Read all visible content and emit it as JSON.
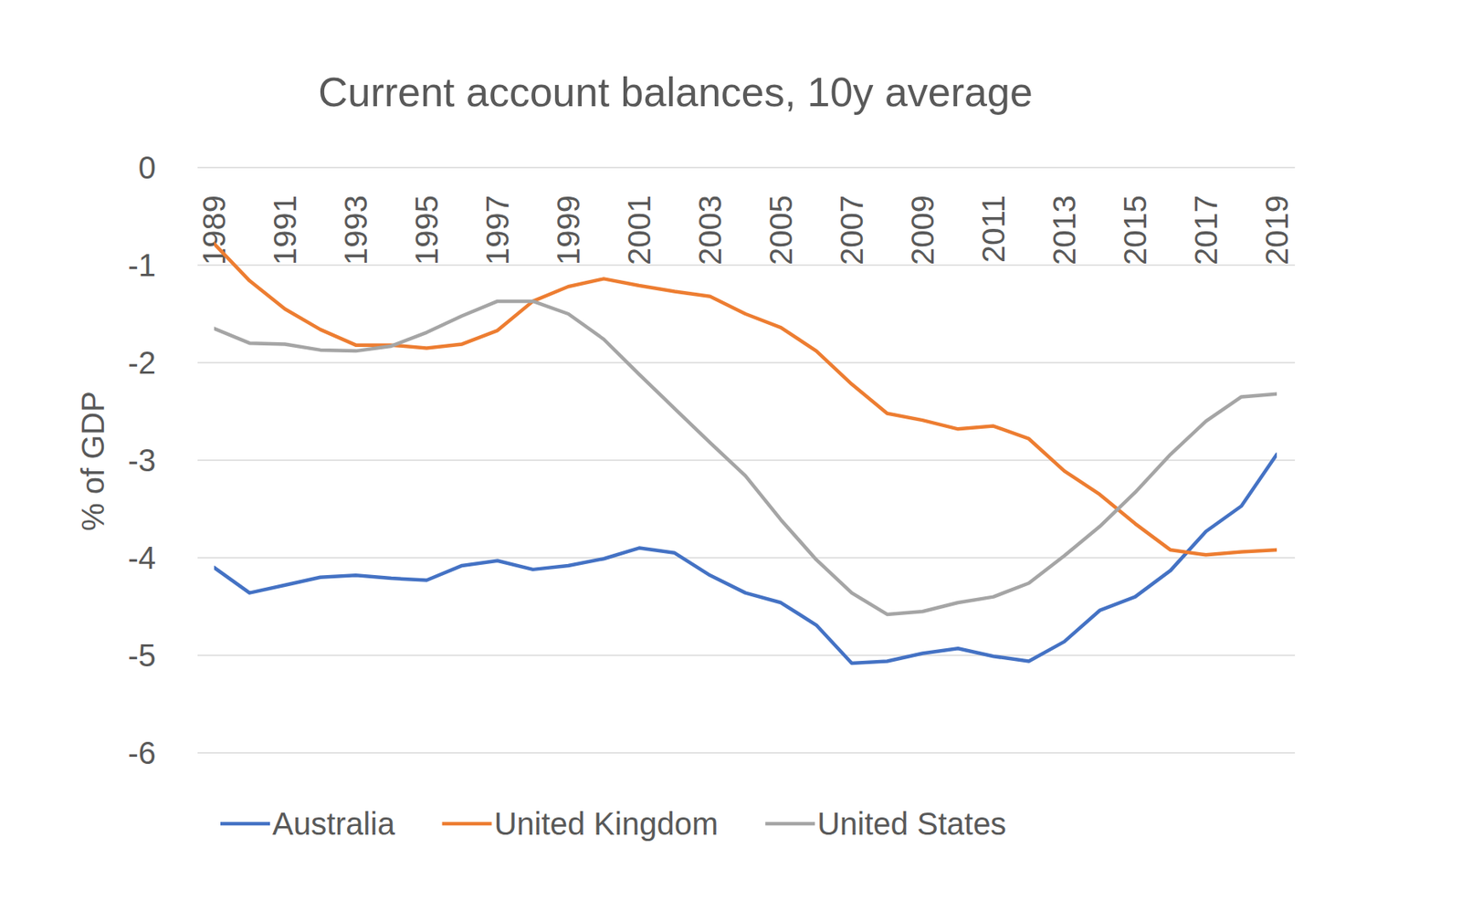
{
  "chart_data": {
    "type": "line",
    "title": "Current account balances, 10y average",
    "y_label": "% of GDP",
    "x": [
      1989,
      1990,
      1991,
      1992,
      1993,
      1994,
      1995,
      1996,
      1997,
      1998,
      1999,
      2000,
      2001,
      2002,
      2003,
      2004,
      2005,
      2006,
      2007,
      2008,
      2009,
      2010,
      2011,
      2012,
      2013,
      2014,
      2015,
      2016,
      2017,
      2018,
      2019
    ],
    "xlim": [
      1989,
      2019
    ],
    "xticks": [
      1989,
      1991,
      1993,
      1995,
      1997,
      1999,
      2001,
      2003,
      2005,
      2007,
      2009,
      2011,
      2013,
      2015,
      2017,
      2019
    ],
    "ylim": [
      -6,
      0
    ],
    "yticks": [
      -6,
      -5,
      -4,
      -3,
      -2,
      -1,
      0
    ],
    "grid": true,
    "legend": "bottom",
    "series": [
      {
        "name": "Australia",
        "color": "#4472c4",
        "values": [
          -4.1,
          -4.36,
          -4.28,
          -4.2,
          -4.18,
          -4.21,
          -4.23,
          -4.08,
          -4.03,
          -4.12,
          -4.08,
          -4.01,
          -3.9,
          -3.95,
          -4.18,
          -4.36,
          -4.46,
          -4.69,
          -5.08,
          -5.06,
          -4.98,
          -4.93,
          -5.01,
          -5.06,
          -4.86,
          -4.54,
          -4.4,
          -4.13,
          -3.73,
          -3.47,
          -2.94
        ]
      },
      {
        "name": "United Kingdom",
        "color": "#ed7d31",
        "values": [
          -0.78,
          -1.16,
          -1.45,
          -1.66,
          -1.82,
          -1.82,
          -1.85,
          -1.81,
          -1.67,
          -1.37,
          -1.22,
          -1.14,
          -1.21,
          -1.27,
          -1.32,
          -1.5,
          -1.64,
          -1.88,
          -2.22,
          -2.52,
          -2.59,
          -2.68,
          -2.65,
          -2.78,
          -3.11,
          -3.35,
          -3.65,
          -3.92,
          -3.97,
          -3.94,
          -3.92
        ]
      },
      {
        "name": "United States",
        "color": "#a5a5a5",
        "values": [
          -1.65,
          -1.8,
          -1.81,
          -1.87,
          -1.88,
          -1.83,
          -1.69,
          -1.52,
          -1.37,
          -1.37,
          -1.5,
          -1.76,
          -2.12,
          -2.47,
          -2.82,
          -3.16,
          -3.61,
          -4.02,
          -4.36,
          -4.58,
          -4.55,
          -4.46,
          -4.4,
          -4.26,
          -3.98,
          -3.68,
          -3.33,
          -2.94,
          -2.6,
          -2.35,
          -2.32
        ]
      }
    ]
  }
}
